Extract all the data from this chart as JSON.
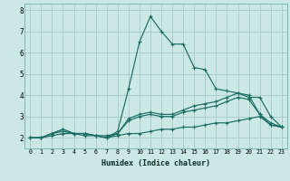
{
  "xlabel": "Humidex (Indice chaleur)",
  "x_values": [
    0,
    1,
    2,
    3,
    4,
    5,
    6,
    7,
    8,
    9,
    10,
    11,
    12,
    13,
    14,
    15,
    16,
    17,
    18,
    19,
    20,
    21,
    22,
    23
  ],
  "line1": [
    2.0,
    2.0,
    2.1,
    2.2,
    2.2,
    2.1,
    2.1,
    2.0,
    2.1,
    2.2,
    2.2,
    2.3,
    2.4,
    2.4,
    2.5,
    2.5,
    2.6,
    2.7,
    2.7,
    2.8,
    2.9,
    3.0,
    2.6,
    2.5
  ],
  "line2": [
    2.0,
    2.0,
    2.2,
    2.3,
    2.2,
    2.2,
    2.1,
    2.1,
    2.2,
    2.8,
    3.0,
    3.1,
    3.0,
    3.0,
    3.2,
    3.3,
    3.4,
    3.5,
    3.7,
    3.9,
    3.8,
    3.1,
    2.6,
    2.5
  ],
  "line3": [
    2.0,
    2.0,
    2.2,
    2.4,
    2.2,
    2.2,
    2.1,
    2.0,
    2.2,
    2.9,
    3.1,
    3.2,
    3.1,
    3.1,
    3.3,
    3.5,
    3.6,
    3.7,
    3.9,
    4.1,
    4.0,
    3.1,
    2.7,
    2.5
  ],
  "line_peak": [
    2.0,
    2.0,
    2.2,
    2.4,
    2.2,
    2.2,
    2.1,
    2.0,
    2.3,
    4.3,
    6.5,
    7.7,
    7.0,
    6.4,
    6.4,
    5.3,
    5.2,
    4.3,
    4.2,
    4.1,
    3.9,
    3.9,
    3.0,
    2.5
  ],
  "bg_color": "#cce8e4",
  "grid_color": "#aacfcc",
  "line_color": "#1a6e64",
  "ylim": [
    1.5,
    8.3
  ],
  "yticks": [
    2,
    3,
    4,
    5,
    6,
    7,
    8
  ],
  "xlim": [
    -0.5,
    23.5
  ]
}
